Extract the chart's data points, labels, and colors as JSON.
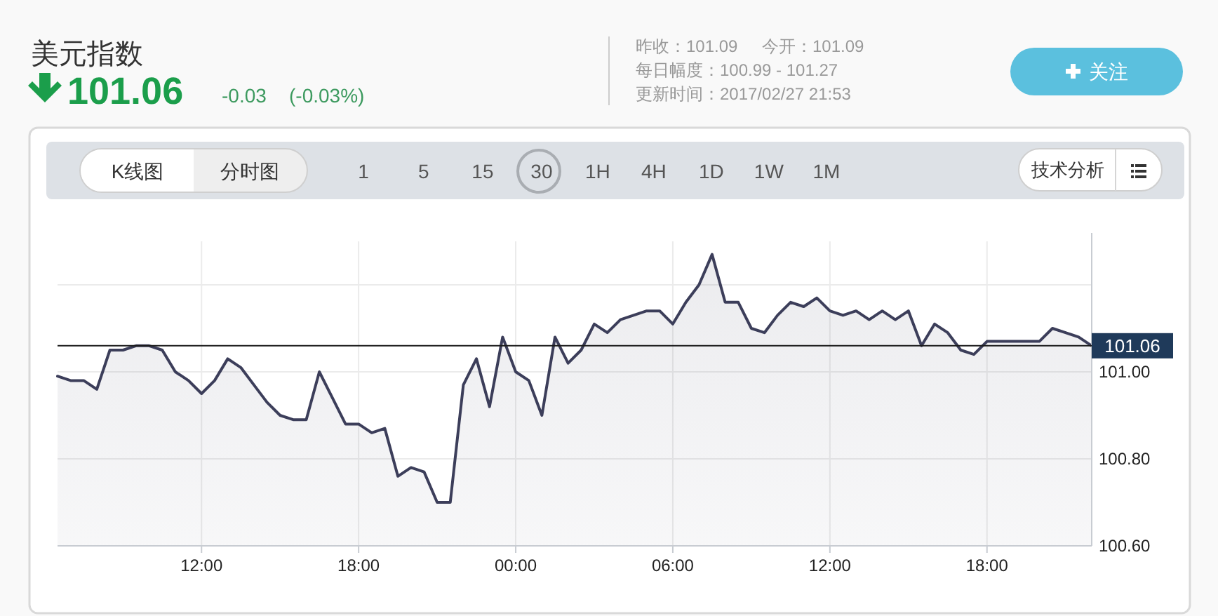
{
  "chart_data": {
    "type": "area",
    "title": "美元指数",
    "annotations": [
      "101.06",
      "-0.03",
      "(-0.03%)",
      "昨收：101.09",
      "今开：101.09",
      "每日幅度：100.99 - 101.27",
      "更新时间：2017/02/27 21:53",
      "关注",
      "K线图",
      "分时图",
      "1 5 15 30 1H 4H 1D 1W 1M",
      "技术分析"
    ],
    "categories": [
      null,
      null,
      null,
      null,
      null,
      null,
      null,
      null,
      null,
      null,
      null,
      "12:00",
      null,
      null,
      null,
      null,
      null,
      null,
      null,
      null,
      null,
      null,
      null,
      "18:00",
      null,
      null,
      null,
      null,
      null,
      null,
      null,
      null,
      null,
      null,
      null,
      "00:00",
      null,
      null,
      null,
      null,
      null,
      null,
      null,
      null,
      null,
      null,
      null,
      "06:00",
      null,
      null,
      null,
      null,
      null,
      null,
      null,
      null,
      null,
      null,
      null,
      "12:00",
      null,
      null,
      null,
      null,
      null,
      null,
      null,
      null,
      null,
      null,
      null,
      "18:00",
      null,
      null,
      null,
      null,
      null,
      null,
      null,
      null
    ],
    "values": [
      100.99,
      100.98,
      100.98,
      100.96,
      101.05,
      101.05,
      101.06,
      101.06,
      101.05,
      101.0,
      100.98,
      100.95,
      100.98,
      101.03,
      101.01,
      100.97,
      100.93,
      100.9,
      100.89,
      100.89,
      101.0,
      100.94,
      100.88,
      100.88,
      100.86,
      100.87,
      100.76,
      100.78,
      100.77,
      100.7,
      100.7,
      100.97,
      101.03,
      100.92,
      101.08,
      101.0,
      100.98,
      100.9,
      101.08,
      101.02,
      101.05,
      101.11,
      101.09,
      101.12,
      101.13,
      101.14,
      101.14,
      101.11,
      101.16,
      101.2,
      101.27,
      101.16,
      101.16,
      101.1,
      101.09,
      101.13,
      101.16,
      101.15,
      101.17,
      101.14,
      101.13,
      101.14,
      101.12,
      101.14,
      101.12,
      101.14,
      101.06,
      101.11,
      101.09,
      101.05,
      101.04,
      101.07,
      101.07,
      101.07,
      101.07,
      101.07,
      101.1,
      101.09,
      101.08,
      101.06
    ],
    "color": "#3c3e5a",
    "ylim": [
      100.6,
      101.3
    ],
    "yticks": [
      {
        "value": 100.6,
        "label": "100.60"
      },
      {
        "value": 100.8,
        "label": "100.80"
      },
      {
        "value": 101,
        "label": "101.00"
      },
      {
        "value": 101.2,
        "label": null
      }
    ],
    "grid": true,
    "ref_lines": [
      {
        "axis": "y",
        "value": 101.06,
        "label": "101.06",
        "color": "#1a1a1a"
      }
    ]
  }
}
